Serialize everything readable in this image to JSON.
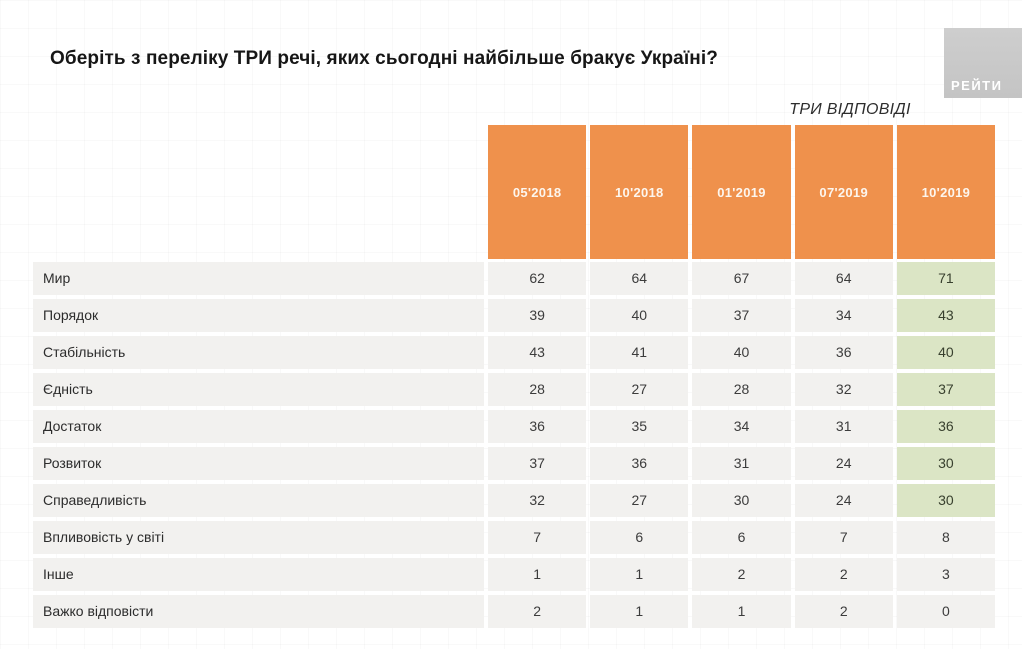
{
  "title": "Оберіть з переліку ТРИ речі, яких сьогодні найбільше бракує Україні?",
  "logo": {
    "text": "РЕЙТИ"
  },
  "answers_note": "ТРИ ВІДПОВІДІ",
  "colors": {
    "header_orange": "#EF914C",
    "highlight_green": "#DBE5C5",
    "row_gray": "#F2F1EF",
    "logo_gray": "#C9C9C9"
  },
  "chart_data": {
    "type": "table",
    "title": "Оберіть з переліку ТРИ речі, яких сьогодні найбільше бракує Україні?",
    "subtitle": "ТРИ ВІДПОВІДІ",
    "categories": [
      "05'2018",
      "10'2018",
      "01'2019",
      "07'2019",
      "10'2019"
    ],
    "series": [
      {
        "name": "Мир",
        "values": [
          62,
          64,
          67,
          64,
          71
        ]
      },
      {
        "name": "Порядок",
        "values": [
          39,
          40,
          37,
          34,
          43
        ]
      },
      {
        "name": "Стабільність",
        "values": [
          43,
          41,
          40,
          36,
          40
        ]
      },
      {
        "name": "Єдність",
        "values": [
          28,
          27,
          28,
          32,
          37
        ]
      },
      {
        "name": "Достаток",
        "values": [
          36,
          35,
          34,
          31,
          36
        ]
      },
      {
        "name": "Розвиток",
        "values": [
          37,
          36,
          31,
          24,
          30
        ]
      },
      {
        "name": "Справедливість",
        "values": [
          32,
          27,
          30,
          24,
          30
        ]
      },
      {
        "name": "Впливовість у світі",
        "values": [
          7,
          6,
          6,
          7,
          8
        ]
      },
      {
        "name": "Інше",
        "values": [
          1,
          1,
          2,
          2,
          3
        ]
      },
      {
        "name": "Важко відповісти",
        "values": [
          2,
          1,
          1,
          2,
          0
        ]
      }
    ],
    "highlighted_column": "10'2019",
    "highlighted_rows": [
      "Мир",
      "Порядок",
      "Стабільність",
      "Єдність",
      "Достаток",
      "Розвиток",
      "Справедливість"
    ],
    "grid": false,
    "legend_position": "none"
  }
}
